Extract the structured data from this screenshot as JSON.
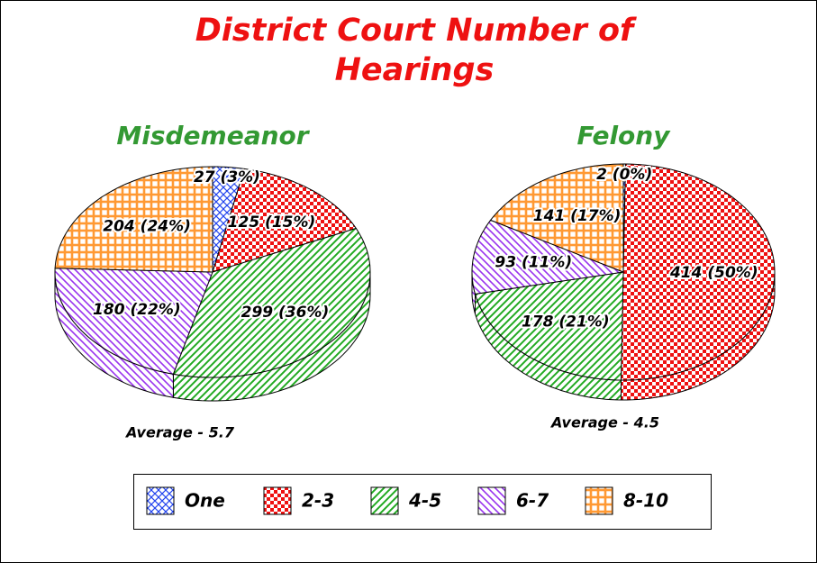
{
  "title": "District Court Number of Hearings",
  "chart_data": [
    {
      "type": "pie",
      "title": "Misdemeanor",
      "annotation": "Average - 5.7",
      "categories": [
        "One",
        "2-3",
        "4-5",
        "6-7",
        "8-10"
      ],
      "values": [
        27,
        125,
        299,
        180,
        204
      ],
      "value_labels": [
        "27 (3%)",
        "125 (15%)",
        "299 (36%)",
        "180 (22%)",
        "204 (24%)"
      ],
      "colors": [
        "#2244ee",
        "#ee1111",
        "#22aa22",
        "#9933ee",
        "#ff9933"
      ]
    },
    {
      "type": "pie",
      "title": "Felony",
      "annotation": "Average - 4.5",
      "categories": [
        "One",
        "2-3",
        "4-5",
        "6-7",
        "8-10"
      ],
      "values": [
        2,
        414,
        178,
        93,
        141
      ],
      "value_labels": [
        "2 (0%)",
        "414 (50%)",
        "178 (21%)",
        "93 (11%)",
        "141 (17%)"
      ],
      "colors": [
        "#2244ee",
        "#ee1111",
        "#22aa22",
        "#9933ee",
        "#ff9933"
      ]
    }
  ]
}
